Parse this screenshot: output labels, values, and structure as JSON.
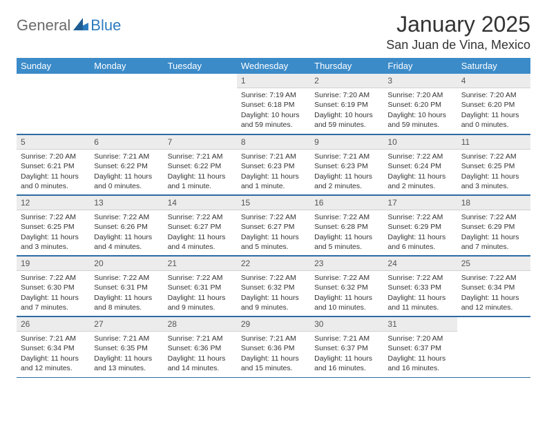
{
  "logo": {
    "general": "General",
    "blue": "Blue"
  },
  "title": "January 2025",
  "location": "San Juan de Vina, Mexico",
  "colors": {
    "header_bg": "#3b8bc9",
    "header_text": "#ffffff",
    "daynum_bg": "#ececec",
    "border": "#2b6aa3",
    "logo_gray": "#6a6a6a",
    "logo_blue": "#2b7bbf"
  },
  "weekdays": [
    "Sunday",
    "Monday",
    "Tuesday",
    "Wednesday",
    "Thursday",
    "Friday",
    "Saturday"
  ],
  "weeks": [
    [
      {
        "n": "",
        "t": ""
      },
      {
        "n": "",
        "t": ""
      },
      {
        "n": "",
        "t": ""
      },
      {
        "n": "1",
        "t": "Sunrise: 7:19 AM\nSunset: 6:18 PM\nDaylight: 10 hours and 59 minutes."
      },
      {
        "n": "2",
        "t": "Sunrise: 7:20 AM\nSunset: 6:19 PM\nDaylight: 10 hours and 59 minutes."
      },
      {
        "n": "3",
        "t": "Sunrise: 7:20 AM\nSunset: 6:20 PM\nDaylight: 10 hours and 59 minutes."
      },
      {
        "n": "4",
        "t": "Sunrise: 7:20 AM\nSunset: 6:20 PM\nDaylight: 11 hours and 0 minutes."
      }
    ],
    [
      {
        "n": "5",
        "t": "Sunrise: 7:20 AM\nSunset: 6:21 PM\nDaylight: 11 hours and 0 minutes."
      },
      {
        "n": "6",
        "t": "Sunrise: 7:21 AM\nSunset: 6:22 PM\nDaylight: 11 hours and 0 minutes."
      },
      {
        "n": "7",
        "t": "Sunrise: 7:21 AM\nSunset: 6:22 PM\nDaylight: 11 hours and 1 minute."
      },
      {
        "n": "8",
        "t": "Sunrise: 7:21 AM\nSunset: 6:23 PM\nDaylight: 11 hours and 1 minute."
      },
      {
        "n": "9",
        "t": "Sunrise: 7:21 AM\nSunset: 6:23 PM\nDaylight: 11 hours and 2 minutes."
      },
      {
        "n": "10",
        "t": "Sunrise: 7:22 AM\nSunset: 6:24 PM\nDaylight: 11 hours and 2 minutes."
      },
      {
        "n": "11",
        "t": "Sunrise: 7:22 AM\nSunset: 6:25 PM\nDaylight: 11 hours and 3 minutes."
      }
    ],
    [
      {
        "n": "12",
        "t": "Sunrise: 7:22 AM\nSunset: 6:25 PM\nDaylight: 11 hours and 3 minutes."
      },
      {
        "n": "13",
        "t": "Sunrise: 7:22 AM\nSunset: 6:26 PM\nDaylight: 11 hours and 4 minutes."
      },
      {
        "n": "14",
        "t": "Sunrise: 7:22 AM\nSunset: 6:27 PM\nDaylight: 11 hours and 4 minutes."
      },
      {
        "n": "15",
        "t": "Sunrise: 7:22 AM\nSunset: 6:27 PM\nDaylight: 11 hours and 5 minutes."
      },
      {
        "n": "16",
        "t": "Sunrise: 7:22 AM\nSunset: 6:28 PM\nDaylight: 11 hours and 5 minutes."
      },
      {
        "n": "17",
        "t": "Sunrise: 7:22 AM\nSunset: 6:29 PM\nDaylight: 11 hours and 6 minutes."
      },
      {
        "n": "18",
        "t": "Sunrise: 7:22 AM\nSunset: 6:29 PM\nDaylight: 11 hours and 7 minutes."
      }
    ],
    [
      {
        "n": "19",
        "t": "Sunrise: 7:22 AM\nSunset: 6:30 PM\nDaylight: 11 hours and 7 minutes."
      },
      {
        "n": "20",
        "t": "Sunrise: 7:22 AM\nSunset: 6:31 PM\nDaylight: 11 hours and 8 minutes."
      },
      {
        "n": "21",
        "t": "Sunrise: 7:22 AM\nSunset: 6:31 PM\nDaylight: 11 hours and 9 minutes."
      },
      {
        "n": "22",
        "t": "Sunrise: 7:22 AM\nSunset: 6:32 PM\nDaylight: 11 hours and 9 minutes."
      },
      {
        "n": "23",
        "t": "Sunrise: 7:22 AM\nSunset: 6:32 PM\nDaylight: 11 hours and 10 minutes."
      },
      {
        "n": "24",
        "t": "Sunrise: 7:22 AM\nSunset: 6:33 PM\nDaylight: 11 hours and 11 minutes."
      },
      {
        "n": "25",
        "t": "Sunrise: 7:22 AM\nSunset: 6:34 PM\nDaylight: 11 hours and 12 minutes."
      }
    ],
    [
      {
        "n": "26",
        "t": "Sunrise: 7:21 AM\nSunset: 6:34 PM\nDaylight: 11 hours and 12 minutes."
      },
      {
        "n": "27",
        "t": "Sunrise: 7:21 AM\nSunset: 6:35 PM\nDaylight: 11 hours and 13 minutes."
      },
      {
        "n": "28",
        "t": "Sunrise: 7:21 AM\nSunset: 6:36 PM\nDaylight: 11 hours and 14 minutes."
      },
      {
        "n": "29",
        "t": "Sunrise: 7:21 AM\nSunset: 6:36 PM\nDaylight: 11 hours and 15 minutes."
      },
      {
        "n": "30",
        "t": "Sunrise: 7:21 AM\nSunset: 6:37 PM\nDaylight: 11 hours and 16 minutes."
      },
      {
        "n": "31",
        "t": "Sunrise: 7:20 AM\nSunset: 6:37 PM\nDaylight: 11 hours and 16 minutes."
      },
      {
        "n": "",
        "t": ""
      }
    ]
  ]
}
